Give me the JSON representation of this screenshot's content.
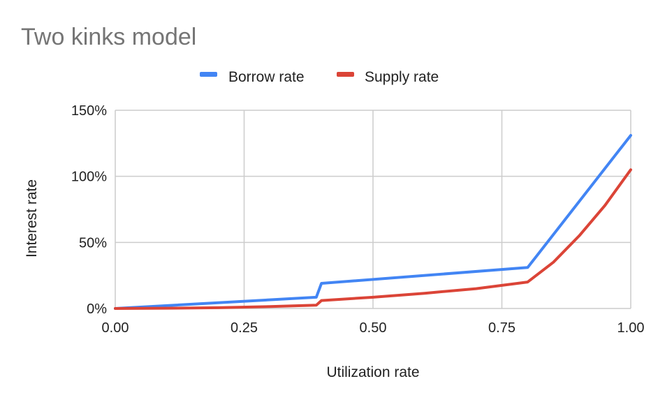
{
  "chart_data": {
    "type": "line",
    "title": "Two kinks model",
    "xlabel": "Utilization rate",
    "ylabel": "Interest rate",
    "xlim": [
      0,
      1
    ],
    "ylim": [
      0,
      150
    ],
    "x_ticks": [
      {
        "value": 0,
        "label": "0.00"
      },
      {
        "value": 0.25,
        "label": "0.25"
      },
      {
        "value": 0.5,
        "label": "0.50"
      },
      {
        "value": 0.75,
        "label": "0.75"
      },
      {
        "value": 1,
        "label": "1.00"
      }
    ],
    "y_ticks": [
      {
        "value": 0,
        "label": "0%"
      },
      {
        "value": 50,
        "label": "50%"
      },
      {
        "value": 100,
        "label": "100%"
      },
      {
        "value": 150,
        "label": "150%"
      }
    ],
    "grid": true,
    "legend_position": "top",
    "series": [
      {
        "name": "Borrow rate",
        "color": "#4285f4",
        "points": [
          [
            0,
            0
          ],
          [
            0.39,
            8.5
          ],
          [
            0.4,
            19
          ],
          [
            0.8,
            31
          ],
          [
            1.0,
            131
          ]
        ]
      },
      {
        "name": "Supply rate",
        "color": "#db4437",
        "points": [
          [
            0,
            0
          ],
          [
            0.1,
            0.2
          ],
          [
            0.2,
            0.6
          ],
          [
            0.3,
            1.4
          ],
          [
            0.39,
            2.5
          ],
          [
            0.4,
            6
          ],
          [
            0.5,
            8.5
          ],
          [
            0.6,
            11.5
          ],
          [
            0.7,
            15
          ],
          [
            0.8,
            20
          ],
          [
            0.85,
            35
          ],
          [
            0.9,
            55
          ],
          [
            0.95,
            78
          ],
          [
            1.0,
            105
          ]
        ]
      }
    ]
  }
}
